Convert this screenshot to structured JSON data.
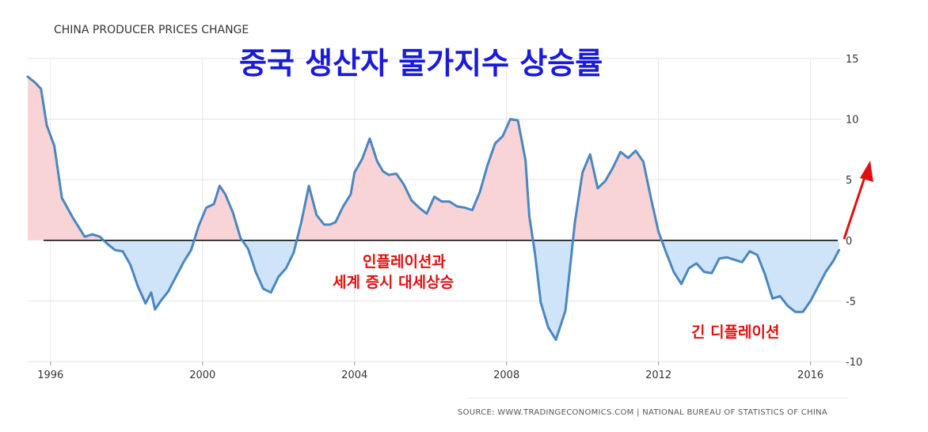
{
  "chart_data": {
    "type": "area",
    "title": "CHINA PRODUCER PRICES CHANGE",
    "overlay_title": "중국 생산자 물가지수 상승률",
    "xlabel": "",
    "ylabel": "",
    "xlim": [
      1995.4,
      2016.8
    ],
    "ylim": [
      -10,
      15
    ],
    "x_ticks": [
      "1996",
      "2000",
      "2004",
      "2008",
      "2012",
      "2016"
    ],
    "y_ticks": [
      "15",
      "10",
      "5",
      "0",
      "-5",
      "-10"
    ],
    "grid": true,
    "y_axis_side": "right",
    "colors": {
      "line": "#4a86c0",
      "positive_fill": "#f9d4d6",
      "negative_fill": "#cfe4f8",
      "zero_line": "#000000",
      "annotation": "#e01010",
      "overlay_title": "#1a1adb"
    },
    "annotations": [
      "인플레이션과",
      "세계 증시 대세상승",
      "긴 디플레이션"
    ],
    "source": "SOURCE: WWW.TRADINGECONOMICS.COM | NATIONAL BUREAU OF STATISTICS OF CHINA",
    "series": [
      {
        "x": [
          1995.4,
          1995.6,
          1995.75,
          1995.9,
          1996.1,
          1996.3,
          1996.6,
          1996.9,
          1997.1,
          1997.3,
          1997.5,
          1997.7,
          1997.9,
          1998.1,
          1998.3,
          1998.5,
          1998.65,
          1998.75,
          1998.9,
          1999.1,
          1999.3,
          1999.5,
          1999.7,
          1999.9,
          2000.1,
          2000.3,
          2000.45,
          2000.6,
          2000.8,
          2001.0,
          2001.2,
          2001.4,
          2001.6,
          2001.8,
          2002.0,
          2002.2,
          2002.4,
          2002.6,
          2002.8,
          2003.0,
          2003.2,
          2003.35,
          2003.5,
          2003.7,
          2003.9,
          2004.0,
          2004.2,
          2004.4,
          2004.6,
          2004.75,
          2004.9,
          2005.1,
          2005.3,
          2005.5,
          2005.7,
          2005.9,
          2006.1,
          2006.3,
          2006.5,
          2006.7,
          2006.9,
          2007.1,
          2007.3,
          2007.5,
          2007.7,
          2007.9,
          2008.1,
          2008.3,
          2008.5,
          2008.6,
          2008.75,
          2008.9,
          2009.1,
          2009.3,
          2009.55,
          2009.8,
          2010.0,
          2010.2,
          2010.4,
          2010.6,
          2010.8,
          2011.0,
          2011.2,
          2011.4,
          2011.6,
          2011.8,
          2012.0,
          2012.2,
          2012.4,
          2012.6,
          2012.8,
          2013.0,
          2013.2,
          2013.4,
          2013.6,
          2013.8,
          2014.0,
          2014.2,
          2014.4,
          2014.6,
          2014.8,
          2015.0,
          2015.2,
          2015.4,
          2015.6,
          2015.8,
          2016.0,
          2016.2,
          2016.4,
          2016.6,
          2016.75
        ],
        "values": [
          13.5,
          13.0,
          12.5,
          9.5,
          7.8,
          3.5,
          1.8,
          0.3,
          0.5,
          0.3,
          -0.3,
          -0.8,
          -0.9,
          -2.0,
          -3.8,
          -5.2,
          -4.3,
          -5.7,
          -5.0,
          -4.2,
          -3.0,
          -1.8,
          -0.8,
          1.2,
          2.7,
          3.0,
          4.5,
          3.8,
          2.3,
          0.2,
          -0.7,
          -2.6,
          -4.0,
          -4.3,
          -3.0,
          -2.3,
          -1.0,
          1.5,
          4.5,
          2.1,
          1.3,
          1.3,
          1.5,
          2.8,
          3.8,
          5.6,
          6.7,
          8.4,
          6.5,
          5.7,
          5.4,
          5.5,
          4.6,
          3.3,
          2.7,
          2.2,
          3.6,
          3.2,
          3.2,
          2.8,
          2.7,
          2.5,
          4.0,
          6.2,
          8.0,
          8.6,
          10.0,
          9.9,
          6.6,
          2.0,
          -1.1,
          -5.1,
          -7.2,
          -8.2,
          -5.8,
          1.5,
          5.6,
          7.1,
          4.3,
          4.9,
          6.0,
          7.3,
          6.8,
          7.4,
          6.5,
          3.5,
          0.7,
          -1.0,
          -2.6,
          -3.6,
          -2.3,
          -1.9,
          -2.6,
          -2.7,
          -1.5,
          -1.4,
          -1.6,
          -1.8,
          -0.9,
          -1.2,
          -2.8,
          -4.8,
          -4.6,
          -5.4,
          -5.9,
          -5.9,
          -5.0,
          -3.8,
          -2.6,
          -1.7,
          -0.8
        ]
      }
    ]
  }
}
